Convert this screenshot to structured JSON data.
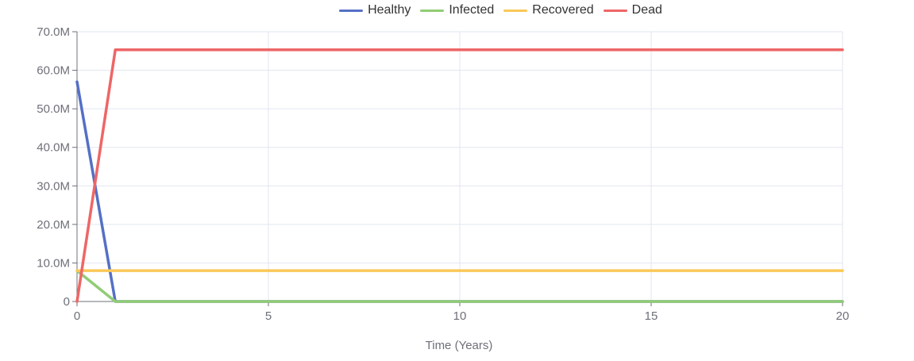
{
  "chart_data": {
    "type": "line",
    "title": "",
    "xlabel": "Time (Years)",
    "ylabel": "",
    "xlim": [
      0,
      20
    ],
    "ylim": [
      0,
      70000000
    ],
    "x_ticks": [
      {
        "value": 0,
        "label": "0"
      },
      {
        "value": 5,
        "label": "5"
      },
      {
        "value": 10,
        "label": "10"
      },
      {
        "value": 15,
        "label": "15"
      },
      {
        "value": 20,
        "label": "20"
      }
    ],
    "y_ticks": [
      {
        "value": 0,
        "label": "0"
      },
      {
        "value": 10000000,
        "label": "10.0M"
      },
      {
        "value": 20000000,
        "label": "20.0M"
      },
      {
        "value": 30000000,
        "label": "30.0M"
      },
      {
        "value": 40000000,
        "label": "40.0M"
      },
      {
        "value": 50000000,
        "label": "50.0M"
      },
      {
        "value": 60000000,
        "label": "60.0M"
      },
      {
        "value": 70000000,
        "label": "70.0M"
      }
    ],
    "grid": true,
    "legend_position": "top-center",
    "x": [
      0,
      1,
      2,
      3,
      4,
      5,
      6,
      7,
      8,
      9,
      10,
      11,
      12,
      13,
      14,
      15,
      16,
      17,
      18,
      19,
      20
    ],
    "series": [
      {
        "name": "Healthy",
        "color": "#5470c6",
        "values": [
          57000000,
          0,
          0,
          0,
          0,
          0,
          0,
          0,
          0,
          0,
          0,
          0,
          0,
          0,
          0,
          0,
          0,
          0,
          0,
          0,
          0
        ]
      },
      {
        "name": "Infected",
        "color": "#91cc75",
        "values": [
          8000000,
          0,
          0,
          0,
          0,
          0,
          0,
          0,
          0,
          0,
          0,
          0,
          0,
          0,
          0,
          0,
          0,
          0,
          0,
          0,
          0
        ]
      },
      {
        "name": "Recovered",
        "color": "#fac858",
        "values": [
          8000000,
          8000000,
          8000000,
          8000000,
          8000000,
          8000000,
          8000000,
          8000000,
          8000000,
          8000000,
          8000000,
          8000000,
          8000000,
          8000000,
          8000000,
          8000000,
          8000000,
          8000000,
          8000000,
          8000000,
          8000000
        ]
      },
      {
        "name": "Dead",
        "color": "#ee6666",
        "values": [
          0,
          65300000,
          65300000,
          65300000,
          65300000,
          65300000,
          65300000,
          65300000,
          65300000,
          65300000,
          65300000,
          65300000,
          65300000,
          65300000,
          65300000,
          65300000,
          65300000,
          65300000,
          65300000,
          65300000,
          65300000
        ]
      }
    ]
  }
}
